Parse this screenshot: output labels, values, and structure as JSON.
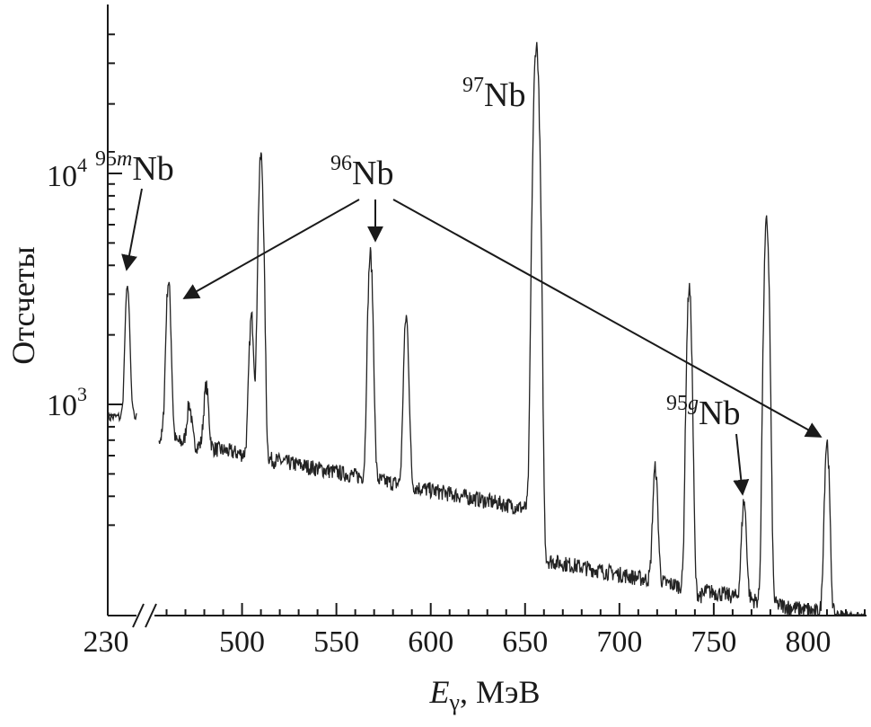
{
  "chart_data": {
    "type": "line",
    "title": "",
    "xlabel_symbol": "E",
    "xlabel_subscript": "γ",
    "xlabel_unit": ", МэВ",
    "ylabel": "Отсчеты",
    "y_scale": "log",
    "y_ticks": [
      {
        "value": 1000,
        "base": "10",
        "exp": "3"
      },
      {
        "value": 10000,
        "base": "10",
        "exp": "4"
      }
    ],
    "x_break": {
      "label": "230",
      "after": "break"
    },
    "x_ticks": [
      "500",
      "550",
      "600",
      "650",
      "700",
      "750",
      "800"
    ],
    "x_tick_values": [
      500,
      550,
      600,
      650,
      700,
      750,
      800
    ],
    "xlim": [
      455,
      830
    ],
    "ylim": [
      300,
      50000
    ],
    "peaks": [
      {
        "x": 230,
        "y": 3300
      },
      {
        "x": 461,
        "y": 3400
      },
      {
        "x": 472,
        "y": 1000
      },
      {
        "x": 481,
        "y": 1200
      },
      {
        "x": 505,
        "y": 2400
      },
      {
        "x": 510,
        "y": 12000
      },
      {
        "x": 568,
        "y": 4500
      },
      {
        "x": 587,
        "y": 2400
      },
      {
        "x": 656,
        "y": 36000
      },
      {
        "x": 719,
        "y": 530
      },
      {
        "x": 737,
        "y": 3200
      },
      {
        "x": 766,
        "y": 380
      },
      {
        "x": 778,
        "y": 6200
      },
      {
        "x": 810,
        "y": 690
      }
    ],
    "annotations": [
      {
        "mass": "95",
        "meta": "m",
        "element": "Nb"
      },
      {
        "mass": "96",
        "meta": "",
        "element": "Nb"
      },
      {
        "mass": "97",
        "meta": "",
        "element": "Nb"
      },
      {
        "mass": "95",
        "meta": "g",
        "element": "Nb"
      }
    ]
  }
}
